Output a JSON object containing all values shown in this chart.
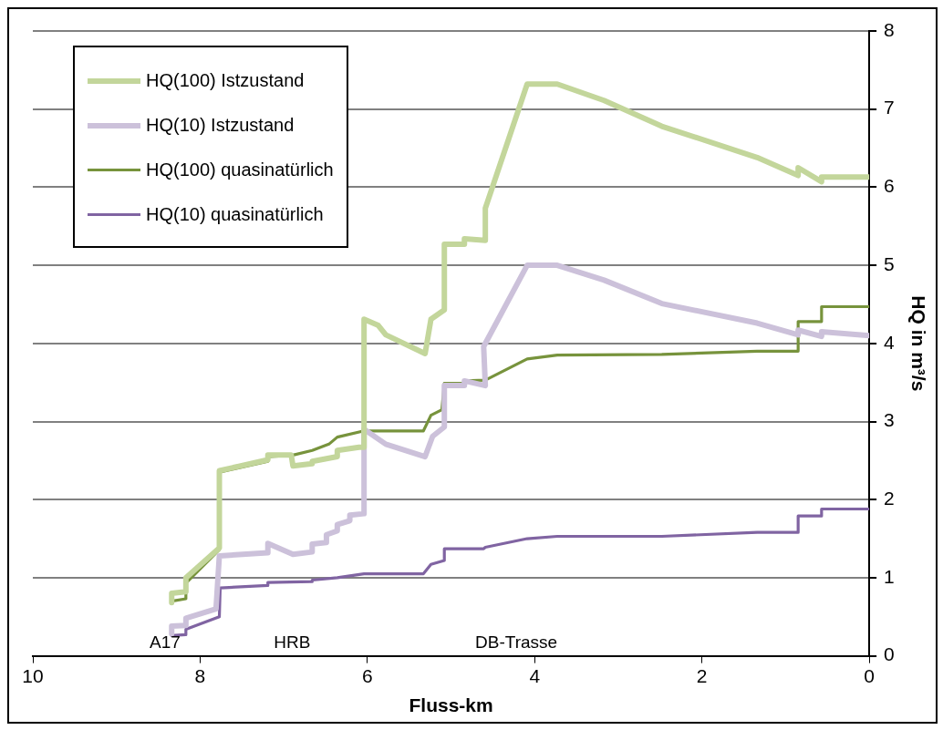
{
  "chart_data": {
    "type": "line",
    "xlabel": "Fluss-km",
    "ylabel": "HQ in m³/s",
    "xlim": [
      10,
      0
    ],
    "xticks": [
      10,
      8,
      6,
      4,
      2,
      0
    ],
    "ylim": [
      0,
      8
    ],
    "yticks": [
      0,
      1,
      2,
      3,
      4,
      5,
      6,
      7,
      8
    ],
    "grid": "y",
    "legend": "top left",
    "marker": "none",
    "line_style": "solid",
    "annotations": [
      "A17",
      "HRB",
      "DB-Trasse"
    ],
    "series": [
      {
        "name": "HQ(100) Istzustand",
        "color": "#c3d69b",
        "x": [
          8.34,
          8.34,
          8.17,
          8.17,
          7.77,
          7.77,
          7.19,
          7.19,
          6.91,
          6.89,
          6.66,
          6.66,
          6.36,
          6.36,
          6.1,
          6.04,
          6.04,
          5.87,
          5.78,
          5.31,
          5.24,
          5.08,
          5.08,
          4.84,
          4.84,
          4.59,
          4.59,
          4.09,
          3.73,
          3.17,
          2.48,
          1.34,
          0.85,
          0.85,
          0.57,
          0.57,
          0
        ],
        "values": [
          0.68,
          0.8,
          0.82,
          1.0,
          1.38,
          2.37,
          2.51,
          2.57,
          2.57,
          2.43,
          2.46,
          2.49,
          2.55,
          2.63,
          2.67,
          2.67,
          4.31,
          4.23,
          4.11,
          3.87,
          4.31,
          4.43,
          5.27,
          5.27,
          5.34,
          5.32,
          5.73,
          7.32,
          7.32,
          7.11,
          6.78,
          6.38,
          6.15,
          6.25,
          6.07,
          6.13,
          6.13
        ]
      },
      {
        "name": "HQ(10) Istzustand",
        "color": "#ccc1da",
        "x": [
          8.34,
          8.34,
          8.17,
          8.17,
          7.81,
          7.77,
          7.19,
          7.19,
          6.89,
          6.66,
          6.66,
          6.49,
          6.49,
          6.36,
          6.36,
          6.21,
          6.21,
          6.04,
          6.04,
          5.78,
          5.31,
          5.22,
          5.08,
          5.08,
          4.84,
          4.84,
          4.59,
          4.61,
          4.09,
          3.73,
          3.17,
          2.48,
          1.34,
          0.85,
          0.85,
          0.57,
          0.57,
          0
        ],
        "values": [
          0.28,
          0.38,
          0.39,
          0.48,
          0.6,
          1.28,
          1.32,
          1.44,
          1.3,
          1.33,
          1.43,
          1.45,
          1.55,
          1.6,
          1.68,
          1.73,
          1.8,
          1.82,
          2.9,
          2.71,
          2.55,
          2.81,
          2.93,
          3.46,
          3.46,
          3.52,
          3.46,
          3.96,
          5.0,
          5.0,
          4.81,
          4.51,
          4.26,
          4.11,
          4.17,
          4.09,
          4.15,
          4.1
        ]
      },
      {
        "name": "HQ(100) quasinatürlich",
        "color": "#77933c",
        "x": [
          8.34,
          8.17,
          8.17,
          7.77,
          7.77,
          7.19,
          7.19,
          6.89,
          6.66,
          6.46,
          6.36,
          6.04,
          5.33,
          5.24,
          5.11,
          5.08,
          4.84,
          4.84,
          4.59,
          4.09,
          3.73,
          2.48,
          1.34,
          0.85,
          0.85,
          0.57,
          0.57,
          0
        ],
        "values": [
          0.7,
          0.73,
          0.93,
          1.36,
          2.35,
          2.49,
          2.55,
          2.57,
          2.63,
          2.71,
          2.8,
          2.88,
          2.88,
          3.08,
          3.15,
          3.49,
          3.49,
          3.52,
          3.53,
          3.8,
          3.85,
          3.86,
          3.9,
          3.9,
          4.28,
          4.28,
          4.47,
          4.47
        ]
      },
      {
        "name": "HQ(10) quasinatürlich",
        "color": "#8064a2",
        "x": [
          8.34,
          8.17,
          8.17,
          7.77,
          7.76,
          7.19,
          7.19,
          6.66,
          6.66,
          6.36,
          6.04,
          5.33,
          5.24,
          5.08,
          5.08,
          4.61,
          4.59,
          4.09,
          3.73,
          2.48,
          1.34,
          0.85,
          0.85,
          0.57,
          0.57,
          0
        ],
        "values": [
          0.26,
          0.27,
          0.34,
          0.5,
          0.87,
          0.9,
          0.94,
          0.95,
          0.97,
          1.0,
          1.05,
          1.05,
          1.17,
          1.22,
          1.37,
          1.37,
          1.39,
          1.5,
          1.53,
          1.53,
          1.58,
          1.58,
          1.79,
          1.79,
          1.88,
          1.88
        ]
      }
    ]
  }
}
